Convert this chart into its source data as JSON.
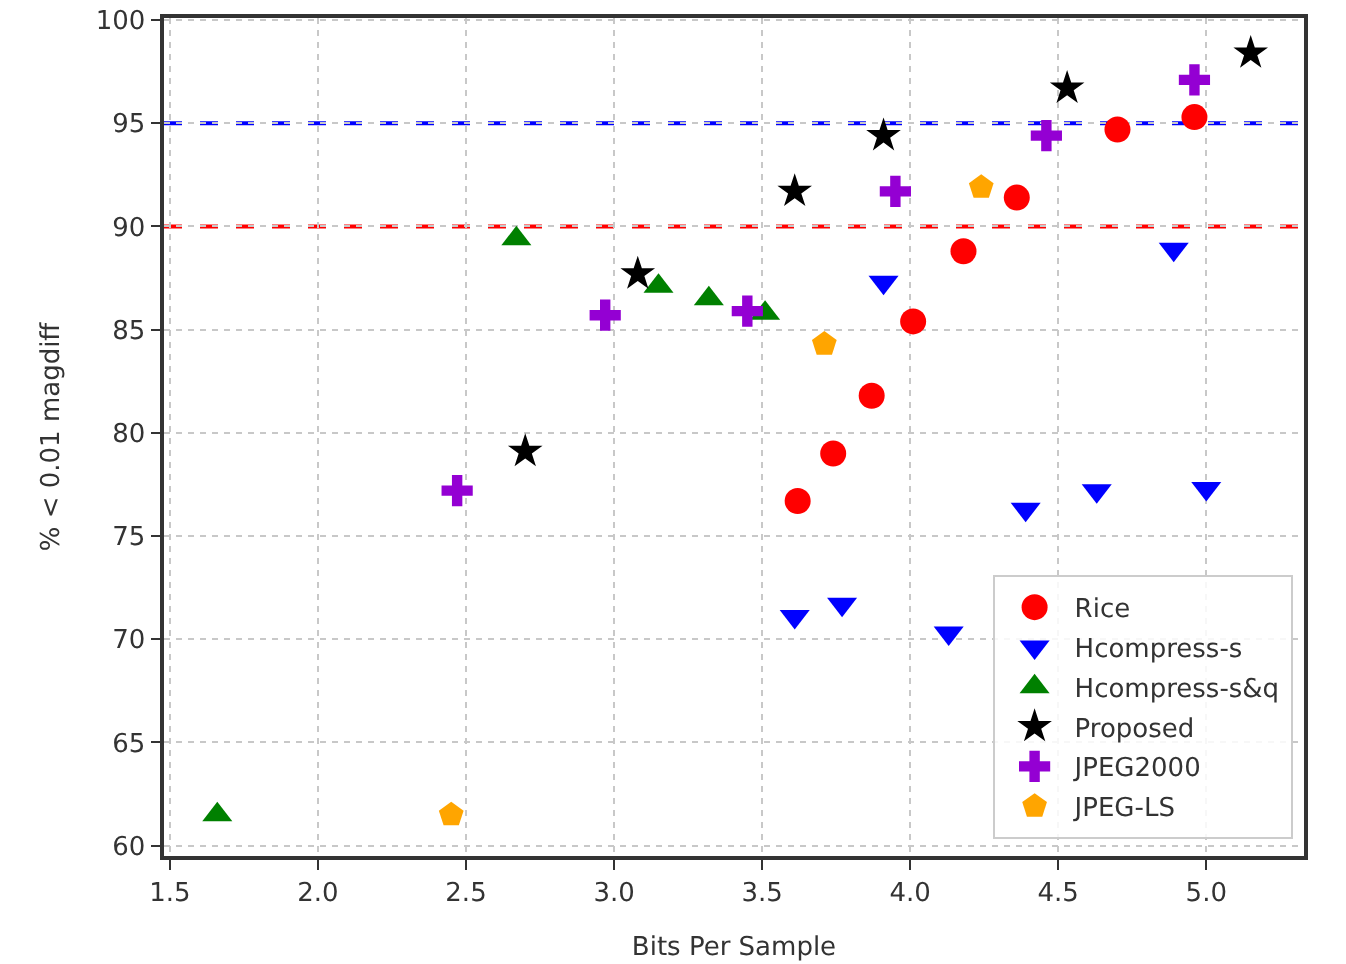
{
  "chart_data": {
    "type": "scatter",
    "xlabel": "Bits Per Sample",
    "ylabel": "% < 0.01 magdiff",
    "xlim": [
      1.48,
      5.33
    ],
    "xticks": [
      1.5,
      {
        "value": 2,
        "label": "2.0"
      },
      2.5,
      {
        "value": 3,
        "label": "3.0"
      },
      3.5,
      {
        "value": 4,
        "label": "4.0"
      },
      4.5,
      {
        "value": 5,
        "label": "5.0"
      }
    ],
    "ylim": [
      59.5,
      100.1
    ],
    "yticks": [
      60,
      65,
      70,
      75,
      80,
      85,
      90,
      95,
      100
    ],
    "grid": true,
    "legend": "bottom right",
    "ref_lines": [
      {
        "axis": "y",
        "value": 95,
        "color": "#0000ff",
        "line_style": "dashed"
      },
      {
        "axis": "y",
        "value": 90,
        "color": "#ff0000",
        "line_style": "dashed"
      }
    ],
    "series": [
      {
        "name": "Rice",
        "color": "#ff0000",
        "marker": "circle",
        "x": [
          3.62,
          3.74,
          3.87,
          4.01,
          4.18,
          4.36,
          4.7,
          4.96
        ],
        "values": [
          76.7,
          79.0,
          81.8,
          85.4,
          88.8,
          91.4,
          94.7,
          95.3
        ]
      },
      {
        "name": "Hcompress-s",
        "color": "#0000ff",
        "x": [
          3.61,
          3.77,
          3.91,
          4.13,
          4.39,
          4.63,
          4.89,
          5.0
        ],
        "values": [
          71.1,
          71.7,
          87.3,
          70.3,
          76.3,
          77.2,
          88.9,
          77.3
        ]
      },
      {
        "name": "Hcompress-s&q",
        "color": "#008000",
        "marker": "triangle",
        "x": [
          1.66,
          2.67,
          3.15,
          3.32,
          3.51
        ],
        "values": [
          61.5,
          89.4,
          87.1,
          86.5,
          85.8
        ]
      },
      {
        "name": "Proposed",
        "color": "#000000",
        "marker": "star",
        "x": [
          2.7,
          3.08,
          3.61,
          3.91,
          4.53,
          5.15
        ],
        "values": [
          79.1,
          87.7,
          91.7,
          94.4,
          96.7,
          98.4
        ]
      },
      {
        "name": "JPEG2000",
        "color": "#9400d3",
        "marker": "cross",
        "x": [
          2.47,
          2.97,
          3.45,
          3.95,
          4.46,
          4.96
        ],
        "values": [
          77.2,
          85.7,
          85.9,
          91.7,
          94.4,
          97.1
        ]
      },
      {
        "name": "JPEG-LS",
        "color": "#ffa500",
        "x": [
          2.45,
          3.71,
          4.24
        ],
        "values": [
          61.5,
          84.3,
          91.9
        ]
      }
    ]
  }
}
